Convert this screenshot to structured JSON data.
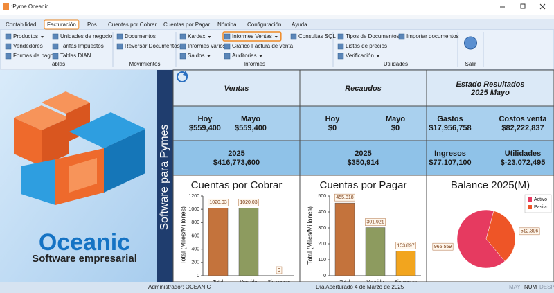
{
  "window": {
    "title": ":Pyme Oceanic"
  },
  "tabs": [
    {
      "label": "Contabilidad"
    },
    {
      "label": "Facturación",
      "selected": true
    },
    {
      "label": "Pos"
    },
    {
      "label": "Cuentas por Cobrar"
    },
    {
      "label": "Cuentas por Pagar"
    },
    {
      "label": "Nómina"
    },
    {
      "label": "Configuración"
    },
    {
      "label": "Ayuda"
    }
  ],
  "ribbon": {
    "groups": [
      {
        "label": "Tablas",
        "items": [
          {
            "label": "Productos",
            "dropdown": true
          },
          {
            "label": "Vendedores"
          },
          {
            "label": "Formas de pago"
          },
          {
            "label": "Unidades de negocio"
          },
          {
            "label": "Tarifas Impuestos"
          },
          {
            "label": "Tablas DIAN"
          }
        ]
      },
      {
        "label": "Movimientos",
        "items": [
          {
            "label": "Documentos"
          },
          {
            "label": "Reversar Documentos"
          }
        ]
      },
      {
        "label": "Informes",
        "items": [
          {
            "label": "Kardex",
            "dropdown": true
          },
          {
            "label": "Informes varios"
          },
          {
            "label": "Saldos",
            "dropdown": true
          },
          {
            "label": "Informes Ventas",
            "dropdown": true,
            "highlighted": true
          },
          {
            "label": "Gráfico Factura de venta"
          },
          {
            "label": "Auditorias",
            "dropdown": true
          },
          {
            "label": "Consultas SQL"
          }
        ]
      },
      {
        "label": "Utilidades",
        "items": [
          {
            "label": "Tipos de Documentos"
          },
          {
            "label": "Listas de precios"
          },
          {
            "label": "Verificación",
            "dropdown": true
          },
          {
            "label": "Importar documentos"
          }
        ]
      },
      {
        "label": "Salir",
        "items": []
      }
    ]
  },
  "logo": {
    "name": "Oceanic",
    "tagline": "Software empresarial"
  },
  "sidebar_label": "Software para Pymes",
  "dashboard": {
    "sections": [
      {
        "title": "Ventas",
        "rows": [
          [
            {
              "label": "Hoy",
              "value": "$559,400"
            },
            {
              "label": "Mayo",
              "value": "$559,400"
            }
          ],
          [
            {
              "label": "2025",
              "value": "$416,773,600"
            }
          ]
        ]
      },
      {
        "title": "Recaudos",
        "rows": [
          [
            {
              "label": "Hoy",
              "value": "$0"
            },
            {
              "label": "Mayo",
              "value": "$0"
            }
          ],
          [
            {
              "label": "2025",
              "value": "$350,914"
            }
          ]
        ]
      },
      {
        "title": "Estado Resultados",
        "subtitle": "2025 Mayo",
        "rows": [
          [
            {
              "label": "Gastos",
              "value": "$17,956,758"
            },
            {
              "label": "Costos venta",
              "value": "$82,222,837"
            }
          ],
          [
            {
              "label": "Ingresos",
              "value": "$77,107,100"
            },
            {
              "label": "Utilidades",
              "value": "$-23,072,495"
            }
          ]
        ]
      }
    ],
    "charts": [
      {
        "type": "bar",
        "title": "Cuentas por Cobrar",
        "y_label": "Total (Miles/Millones)",
        "categories": [
          "Total",
          "Vencido",
          "Sin vencer"
        ],
        "values": [
          1020.03,
          1020.03,
          0
        ],
        "colors": [
          "#c4733c",
          "#8d9b5f",
          "#f2a51e"
        ],
        "ylim": [
          0,
          1200
        ],
        "yticks": [
          0,
          200,
          400,
          600,
          800,
          1000,
          1200
        ]
      },
      {
        "type": "bar",
        "title": "Cuentas por Pagar",
        "y_label": "Total (Miles/Millones)",
        "categories": [
          "Total",
          "Vencido",
          "Sin vencer"
        ],
        "values": [
          455.818,
          301.921,
          153.897
        ],
        "colors": [
          "#c4733c",
          "#8d9b5f",
          "#f2a51e"
        ],
        "ylim": [
          0,
          500
        ],
        "yticks": [
          0,
          100,
          200,
          300,
          400,
          500
        ]
      },
      {
        "type": "pie",
        "title": "Balance 2025(M)",
        "categories": [
          "Activo",
          "Pasivo"
        ],
        "values": [
          965.559,
          512.396
        ],
        "colors": [
          "#e63a60",
          "#ee5527"
        ],
        "legend": "top-right"
      }
    ]
  },
  "status": {
    "user": "Administrador: OCEANIC",
    "date": "Día Aperturado 4 de Marzo de 2025",
    "indicators": [
      "MAY",
      "NUM",
      "DESP"
    ]
  }
}
